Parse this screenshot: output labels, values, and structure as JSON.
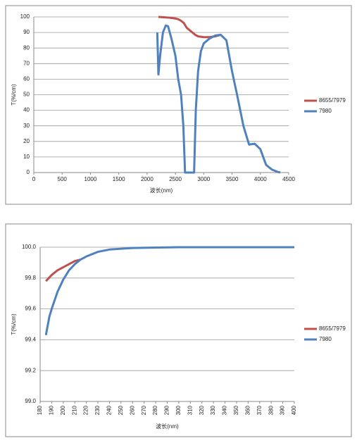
{
  "chart_data": [
    {
      "type": "line",
      "xlabel": "波长(nm)",
      "ylabel": "T(%/cm)",
      "xlim": [
        0,
        4500
      ],
      "xticks": [
        0,
        500,
        1000,
        1500,
        2000,
        2500,
        3000,
        3500,
        4000,
        4500
      ],
      "ylim": [
        0,
        100
      ],
      "yticks": [
        0,
        10,
        20,
        30,
        40,
        50,
        60,
        70,
        80,
        90,
        100
      ],
      "grid": true,
      "series": [
        {
          "name": "8655/7979",
          "color": "#c0504d",
          "x": [
            2200,
            2400,
            2500,
            2550,
            2600,
            2650,
            2700,
            2750,
            2800,
            2850,
            2900,
            3000,
            3100,
            3200,
            3300
          ],
          "values": [
            100,
            99.5,
            99,
            98.5,
            97.5,
            96,
            93,
            91.5,
            90,
            88.5,
            87.5,
            87,
            87,
            87.5,
            88.5
          ]
        },
        {
          "name": "7980",
          "color": "#4f81bd",
          "x": [
            2180,
            2200,
            2230,
            2280,
            2330,
            2370,
            2430,
            2500,
            2550,
            2600,
            2640,
            2670,
            2830,
            2860,
            2900,
            2950,
            3000,
            3100,
            3200,
            3300,
            3400,
            3500,
            3600,
            3700,
            3800,
            3900,
            4000,
            4100,
            4200,
            4300,
            4350
          ],
          "values": [
            90,
            63,
            75,
            90,
            94.5,
            94,
            86,
            75,
            60,
            50,
            30,
            0,
            0,
            40,
            65,
            78,
            83,
            86,
            88,
            88.5,
            85,
            65,
            48,
            30,
            18,
            18.5,
            15,
            5,
            2,
            0.5,
            0
          ]
        }
      ]
    },
    {
      "type": "line",
      "xlabel": "波长(nm)",
      "ylabel": "T(%/cm)",
      "xlim": [
        180,
        400
      ],
      "xticks": [
        180,
        190,
        200,
        210,
        220,
        230,
        240,
        250,
        260,
        270,
        280,
        290,
        300,
        310,
        320,
        330,
        340,
        350,
        360,
        370,
        380,
        390,
        400
      ],
      "ylim": [
        99,
        100
      ],
      "yticks": [
        {
          "value": 99,
          "label": "99.0"
        },
        99.2,
        99.4,
        99.6,
        99.8,
        {
          "value": 100,
          "label": "100.0"
        }
      ],
      "grid": true,
      "series": [
        {
          "name": "8655/7979",
          "color": "#c0504d",
          "x": [
            185,
            190,
            195,
            200,
            205,
            210,
            215
          ],
          "values": [
            99.78,
            99.82,
            99.85,
            99.87,
            99.89,
            99.91,
            99.92
          ]
        },
        {
          "name": "7980",
          "color": "#4f81bd",
          "x": [
            185,
            188,
            190,
            195,
            200,
            205,
            210,
            215,
            220,
            230,
            240,
            250,
            260,
            280,
            300,
            350,
            400
          ],
          "values": [
            99.43,
            99.55,
            99.6,
            99.71,
            99.79,
            99.85,
            99.89,
            99.92,
            99.94,
            99.97,
            99.985,
            99.99,
            99.995,
            99.998,
            100,
            100,
            100
          ]
        }
      ]
    }
  ]
}
